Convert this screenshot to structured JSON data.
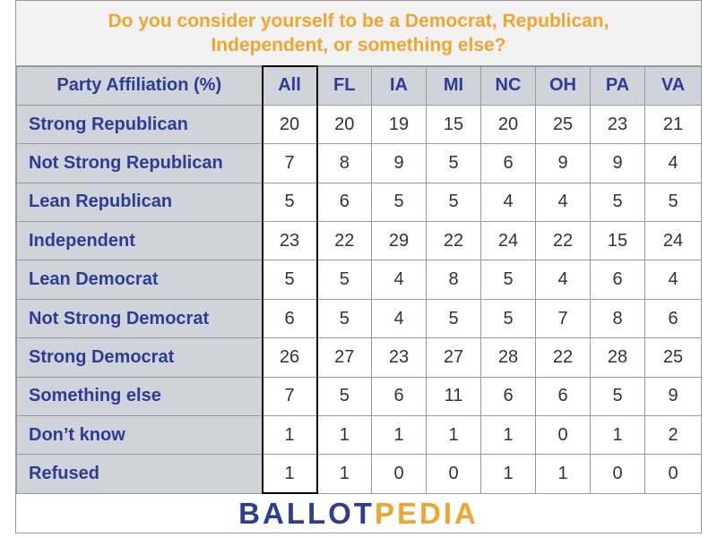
{
  "title": {
    "line1": "Do you consider yourself to be a Democrat, Republican,",
    "line2": "Independent, or something else?"
  },
  "logo": {
    "part1": "BALLOT",
    "part2": "PEDIA"
  },
  "colors": {
    "title": "#f0a52c",
    "header_text": "#2b3d97",
    "header_bg": "#d0d3da"
  },
  "chart_data": {
    "type": "table",
    "corner_label": "Party Affiliation (%)",
    "columns": [
      "All",
      "FL",
      "IA",
      "MI",
      "NC",
      "OH",
      "PA",
      "VA"
    ],
    "rows": [
      {
        "label": "Strong Republican",
        "values": [
          "20",
          "20",
          "19",
          "15",
          "20",
          "25",
          "23",
          "21"
        ]
      },
      {
        "label": "Not Strong Republican",
        "values": [
          "7",
          "8",
          "9",
          "5",
          "6",
          "9",
          "9",
          "4"
        ]
      },
      {
        "label": "Lean Republican",
        "values": [
          "5",
          "6",
          "5",
          "5",
          "4",
          "4",
          "5",
          "5"
        ]
      },
      {
        "label": "Independent",
        "values": [
          "23",
          "22",
          "29",
          "22",
          "24",
          "22",
          "15",
          "24"
        ]
      },
      {
        "label": "Lean Democrat",
        "values": [
          "5",
          "5",
          "4",
          "8",
          "5",
          "4",
          "6",
          "4"
        ]
      },
      {
        "label": "Not Strong Democrat",
        "values": [
          "6",
          "5",
          "4",
          "5",
          "5",
          "7",
          "8",
          "6"
        ]
      },
      {
        "label": "Strong Democrat",
        "values": [
          "26",
          "27",
          "23",
          "27",
          "28",
          "22",
          "28",
          "25"
        ]
      },
      {
        "label": "Something else",
        "values": [
          "7",
          "5",
          "6",
          "11",
          "6",
          "6",
          "5",
          "9"
        ]
      },
      {
        "label": "Don’t know",
        "values": [
          "1",
          "1",
          "1",
          "1",
          "1",
          "0",
          "1",
          "2"
        ]
      },
      {
        "label": "Refused",
        "values": [
          "1",
          "1",
          "0",
          "0",
          "1",
          "1",
          "0",
          "0"
        ]
      }
    ]
  }
}
